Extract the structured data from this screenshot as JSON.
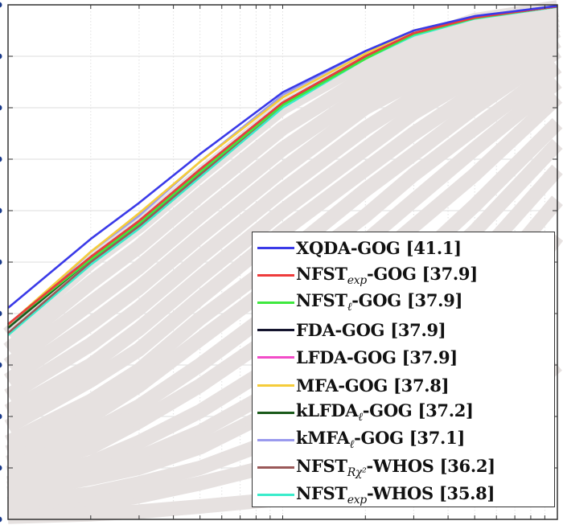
{
  "chart_data": {
    "type": "line",
    "title": "",
    "xlabel": "",
    "ylabel": "",
    "xscale": "log",
    "xlim": [
      1,
      100
    ],
    "ylim": [
      0,
      100
    ],
    "yticks": [
      0,
      10,
      20,
      30,
      40,
      50,
      60,
      70,
      80,
      90,
      100
    ],
    "xticks": [
      1,
      2,
      3,
      4,
      5,
      6,
      7,
      8,
      9,
      10,
      20,
      30,
      40,
      50,
      60,
      70,
      80,
      90,
      100
    ],
    "grid": true,
    "legend_placement": "bottom-right",
    "x": [
      1,
      2,
      3,
      5,
      10,
      20,
      30,
      50,
      100
    ],
    "background_series_color": "#e6e1e0",
    "background_series": [
      [
        36,
        50,
        57,
        67,
        80,
        89,
        93,
        97,
        99.5
      ],
      [
        33,
        46,
        53,
        63,
        76,
        86,
        91,
        95,
        99
      ],
      [
        30,
        42,
        49,
        59,
        72,
        83,
        88,
        93,
        98
      ],
      [
        27,
        38,
        45,
        55,
        68,
        80,
        85,
        91,
        97
      ],
      [
        24,
        34,
        41,
        51,
        64,
        76,
        82,
        89,
        96
      ],
      [
        21,
        30,
        37,
        47,
        60,
        72,
        79,
        86,
        95
      ],
      [
        18,
        27,
        33,
        43,
        56,
        68,
        75,
        83,
        93
      ],
      [
        15,
        23,
        29,
        39,
        51,
        64,
        71,
        80,
        91
      ],
      [
        13,
        20,
        26,
        35,
        47,
        59,
        67,
        76,
        88
      ],
      [
        11,
        17,
        22,
        30,
        42,
        54,
        62,
        72,
        85
      ],
      [
        9,
        14,
        19,
        26,
        37,
        49,
        57,
        67,
        82
      ],
      [
        7,
        11,
        15,
        21,
        31,
        42,
        50,
        61,
        77
      ],
      [
        6,
        9,
        12,
        17,
        26,
        37,
        45,
        56,
        73
      ],
      [
        5,
        8,
        10,
        14,
        22,
        32,
        39,
        50,
        68
      ],
      [
        3,
        5,
        7,
        10,
        16,
        25,
        32,
        43,
        62
      ],
      [
        2,
        3,
        4.5,
        7,
        11,
        18,
        24,
        34,
        55
      ],
      [
        0.5,
        1,
        1.5,
        2.5,
        4,
        7,
        10,
        16,
        30
      ]
    ],
    "series": [
      {
        "name": "XQDA-GOG [41.1]",
        "pre": "XQDA-GOG [41.1]",
        "sub": "",
        "post": "",
        "color": "#3a3ae8",
        "values": [
          41.1,
          54.5,
          61.5,
          71,
          83,
          91,
          95,
          97.8,
          99.8
        ]
      },
      {
        "name": "NFSTexp-GOG [37.9]",
        "pre": "NFST",
        "sub": "exp",
        "post": "-GOG [37.9]",
        "color": "#ee3b3b",
        "values": [
          37.9,
          51,
          58,
          68,
          81,
          90,
          94.5,
          97.5,
          99.7
        ]
      },
      {
        "name": "NFSTℓ-GOG [37.9]",
        "pre": "NFST",
        "sub": "ℓ",
        "post": "-GOG [37.9]",
        "color": "#3ee83e",
        "values": [
          37.9,
          50.5,
          57.5,
          67.5,
          80.5,
          89.5,
          94.3,
          97.4,
          99.7
        ]
      },
      {
        "name": "FDA-GOG [37.9]",
        "pre": "FDA-GOG [37.9]",
        "sub": "",
        "post": "",
        "color": "#14142e",
        "values": [
          37.9,
          51,
          58,
          68,
          81,
          90,
          94.5,
          97.5,
          99.7
        ]
      },
      {
        "name": "LFDA-GOG [37.9]",
        "pre": "LFDA-GOG [37.9]",
        "sub": "",
        "post": "",
        "color": "#f24cc8",
        "values": [
          37.9,
          51,
          58,
          68,
          81,
          90,
          94.5,
          97.5,
          99.7
        ]
      },
      {
        "name": "MFA-GOG [37.8]",
        "pre": "MFA-GOG [37.8]",
        "sub": "",
        "post": "",
        "color": "#f5cc3a",
        "values": [
          37.8,
          52,
          59.5,
          69.5,
          82,
          90.5,
          95,
          97.7,
          99.7
        ]
      },
      {
        "name": "kLFDAℓ-GOG [37.2]",
        "pre": "kLFDA",
        "sub": "ℓ",
        "post": "-GOG [37.2]",
        "color": "#1a5a1a",
        "values": [
          37.2,
          50.5,
          57.5,
          67.5,
          81,
          90,
          94.4,
          97.5,
          99.7
        ]
      },
      {
        "name": "kMFAℓ-GOG [37.1]",
        "pre": "kMFA",
        "sub": "ℓ",
        "post": "-GOG [37.1]",
        "color": "#9a9aee",
        "values": [
          37.1,
          52,
          59,
          69.5,
          82.5,
          91,
          95,
          97.8,
          99.8
        ]
      },
      {
        "name": "NFSTRχ2-WHOS [36.2]",
        "pre": "NFST",
        "sub": "Rχ²",
        "post": "-WHOS [36.2]",
        "color": "#9a5858",
        "values": [
          36.2,
          50,
          57,
          67,
          80.5,
          90,
          94.5,
          97.5,
          99.7
        ]
      },
      {
        "name": "NFSTexp-WHOS [35.8]",
        "pre": "NFST",
        "sub": "exp",
        "post": "-WHOS [35.8]",
        "color": "#3aeccb",
        "values": [
          35.8,
          49.5,
          56.5,
          66.5,
          80,
          89.5,
          94,
          97.3,
          99.6
        ]
      }
    ]
  }
}
